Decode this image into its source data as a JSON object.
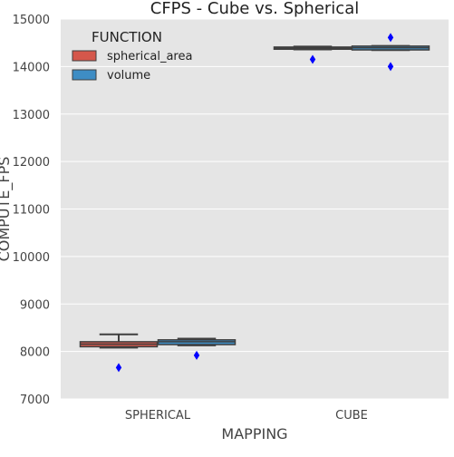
{
  "chart_data": {
    "type": "boxplot",
    "title": "CFPS - Cube vs. Spherical",
    "xlabel": "MAPPING",
    "ylabel": "COMPUTE_FPS",
    "categories": [
      "SPHERICAL",
      "CUBE"
    ],
    "ylim": [
      7000,
      15000
    ],
    "yticks": [
      7000,
      8000,
      9000,
      10000,
      11000,
      12000,
      13000,
      14000,
      15000
    ],
    "grid": true,
    "legend": {
      "title": "FUNCTION",
      "placement": "top-left",
      "entries": [
        "spherical_area",
        "volume"
      ]
    },
    "colors": {
      "background": "#e5e5e5",
      "grid": "#ffffff",
      "box_line": "#3f3f3f",
      "outlier": "#0000ff",
      "text": "#444444"
    },
    "series": [
      {
        "name": "spherical_area",
        "color": "#d5574b",
        "boxes": [
          {
            "category": "SPHERICAL",
            "whisker_low": 8080,
            "q1": 8100,
            "median": 8155,
            "q3": 8205,
            "whisker_high": 8360,
            "outliers": [
              7660
            ]
          },
          {
            "category": "CUBE",
            "whisker_low": 14360,
            "q1": 14365,
            "median": 14385,
            "q3": 14410,
            "whisker_high": 14420,
            "outliers": [
              14150
            ]
          }
        ]
      },
      {
        "name": "volume",
        "color": "#3e8dc4",
        "boxes": [
          {
            "category": "SPHERICAL",
            "whisker_low": 8130,
            "q1": 8145,
            "median": 8205,
            "q3": 8245,
            "whisker_high": 8270,
            "outliers": [
              7920
            ]
          },
          {
            "category": "CUBE",
            "whisker_low": 14345,
            "q1": 14350,
            "median": 14395,
            "q3": 14430,
            "whisker_high": 14435,
            "outliers": [
              14610,
              14000
            ]
          }
        ]
      }
    ]
  }
}
